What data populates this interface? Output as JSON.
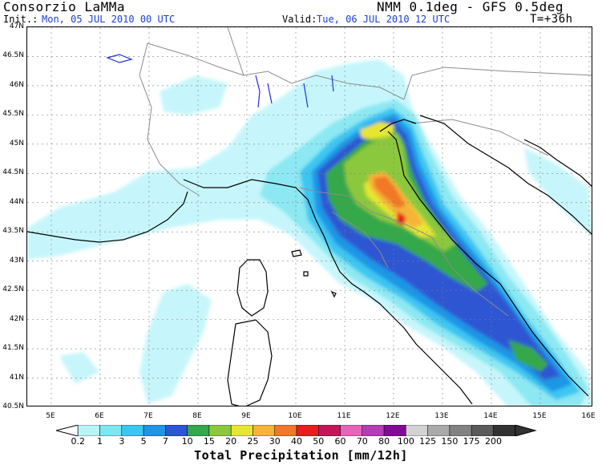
{
  "header": {
    "org": "Consorzio LaMMa",
    "init_label": "Init.:",
    "init_value": "Mon, 05 JUL 2010  00 UTC",
    "model": "NMM 0.1deg - GFS 0.5deg",
    "valid_label": "Valid:",
    "valid_value": "Tue, 06 JUL 2010  12 UTC",
    "forecast_step": "T=+36h"
  },
  "axes": {
    "y_ticks": [
      "47N",
      "46.5N",
      "46N",
      "45.5N",
      "45N",
      "44.5N",
      "44N",
      "43.5N",
      "43N",
      "42.5N",
      "42N",
      "41.5N",
      "41N",
      "40.5N"
    ],
    "x_ticks": [
      "5E",
      "6E",
      "7E",
      "8E",
      "9E",
      "10E",
      "11E",
      "12E",
      "13E",
      "14E",
      "15E",
      "16E"
    ]
  },
  "colorbar": {
    "title": "Total Precipitation [mm/12h]",
    "labels": [
      "0.2",
      "1",
      "3",
      "5",
      "7",
      "10",
      "15",
      "20",
      "25",
      "30",
      "40",
      "50",
      "60",
      "70",
      "80",
      "100",
      "125",
      "150",
      "175",
      "200"
    ],
    "colors": [
      "#ffffff",
      "#b9f4fb",
      "#7be8f0",
      "#38c8f2",
      "#1e96e6",
      "#2d56d3",
      "#34a84a",
      "#8cc83c",
      "#e6e632",
      "#f5b437",
      "#f07828",
      "#e61e1e",
      "#c8145a",
      "#e664b9",
      "#b43cb4",
      "#820a96",
      "#d2d2d2",
      "#aaaaaa",
      "#828282",
      "#5a5a5a",
      "#323232"
    ]
  },
  "map": {
    "region": "Northern and Central Italy",
    "coast_color": "#000000",
    "border_color": "#8c8c8c",
    "lake_color": "#1f2fd8"
  }
}
